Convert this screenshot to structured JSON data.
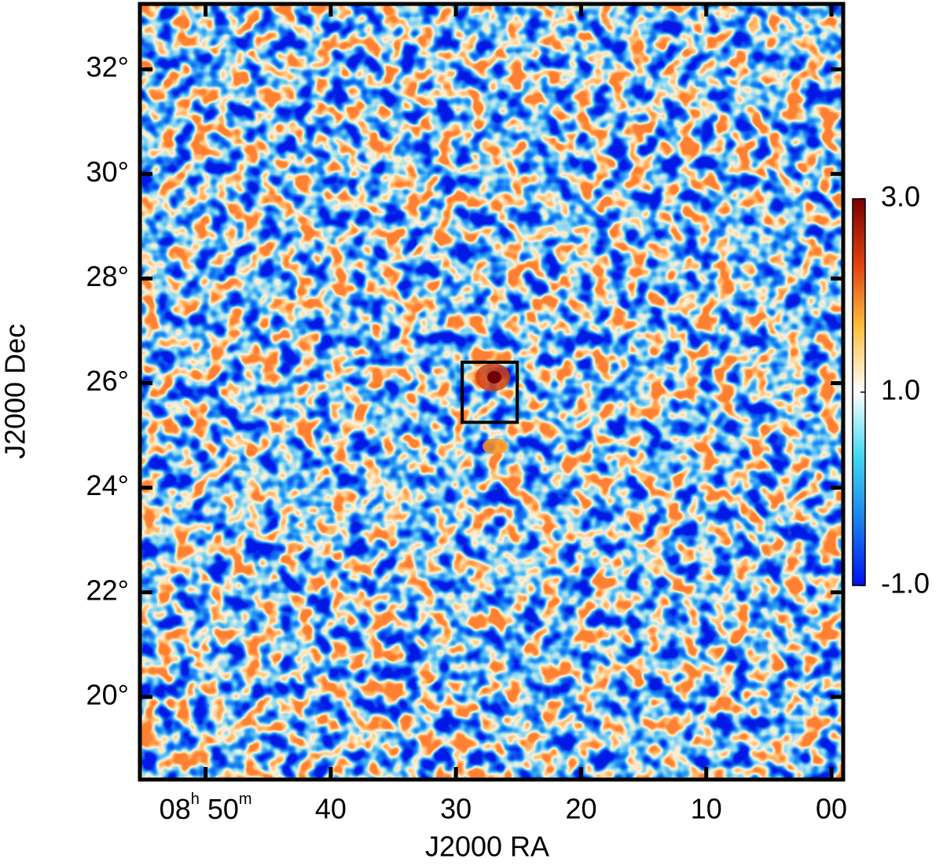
{
  "chart_data": {
    "type": "heatmap",
    "xlabel": "J2000 RA",
    "ylabel": "J2000 Dec",
    "xlim": [
      55.25,
      -0.94
    ],
    "xticks": [
      {
        "value": 50,
        "label": "08h 50m"
      },
      40,
      30,
      20,
      10,
      {
        "value": 0,
        "label": "00"
      }
    ],
    "ylim": [
      18.42,
      33.25
    ],
    "yticks": [
      {
        "value": 20,
        "label": "20°"
      },
      {
        "value": 22,
        "label": "22°"
      },
      {
        "value": 24,
        "label": "24°"
      },
      {
        "value": 26,
        "label": "26°"
      },
      {
        "value": 28,
        "label": "28°"
      },
      {
        "value": 30,
        "label": "30°"
      },
      {
        "value": 32,
        "label": "32°"
      }
    ],
    "clim": [
      -1,
      3
    ],
    "cticks": [
      {
        "value": -1,
        "label": "-1.0"
      },
      {
        "value": 1,
        "label": "1.0"
      },
      {
        "value": 3,
        "label": "3.0"
      }
    ],
    "colormap": [
      "#0010f0",
      "#1a7ff0",
      "#40d8f0",
      "#ffffff",
      "#ffc040",
      "#e04010",
      "#780000"
    ],
    "box": {
      "x": [
        29.5,
        25.1
      ],
      "y": [
        25.25,
        26.4
      ]
    }
  }
}
